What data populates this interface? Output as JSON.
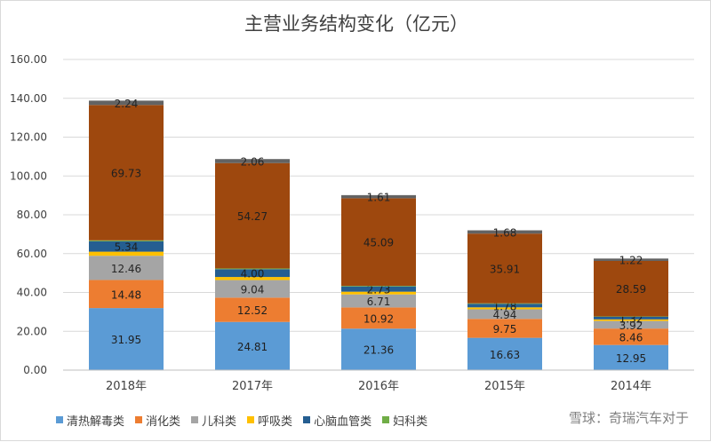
{
  "chart_data": {
    "type": "bar",
    "stacked": true,
    "title": "主营业务结构变化（亿元）",
    "categories": [
      "2018年",
      "2017年",
      "2016年",
      "2015年",
      "2014年"
    ],
    "ylim": [
      0,
      160
    ],
    "yticks": [
      "0.00",
      "20.00",
      "40.00",
      "60.00",
      "80.00",
      "100.00",
      "120.00",
      "140.00",
      "160.00"
    ],
    "grid": true,
    "legend_position": "bottom",
    "series": [
      {
        "name": "清热解毒类",
        "color": "#5b9bd5",
        "values": [
          31.95,
          24.81,
          21.36,
          16.63,
          12.95
        ],
        "labels": [
          "31.95",
          "24.81",
          "21.36",
          "16.63",
          "12.95"
        ]
      },
      {
        "name": "消化类",
        "color": "#ed7d31",
        "values": [
          14.48,
          12.52,
          10.92,
          9.75,
          8.46
        ],
        "labels": [
          "14.48",
          "12.52",
          "10.92",
          "9.75",
          "8.46"
        ]
      },
      {
        "name": "儿科类",
        "color": "#a5a5a5",
        "values": [
          12.46,
          9.04,
          6.71,
          4.94,
          3.92
        ],
        "labels": [
          "12.46",
          "9.04",
          "6.71",
          "4.94",
          "3.92"
        ]
      },
      {
        "name": "呼吸类",
        "color": "#ffc000",
        "values": [
          2.1,
          1.6,
          1.4,
          1.0,
          0.8
        ],
        "labels": [
          "",
          "",
          "",
          "",
          ""
        ]
      },
      {
        "name": "心脑血管类",
        "color": "#255e91",
        "values": [
          5.34,
          4.0,
          2.73,
          1.78,
          1.32
        ],
        "labels": [
          "5.34",
          "4.00",
          "2.73",
          "1.78",
          "1.32"
        ]
      },
      {
        "name": "妇科类",
        "color": "#70ad47",
        "values": [
          0.5,
          0.4,
          0.3,
          0.3,
          0.2
        ],
        "labels": [
          "",
          "",
          "",
          "",
          ""
        ]
      },
      {
        "name": "",
        "color": "#9e480e",
        "values": [
          69.73,
          54.27,
          45.09,
          35.91,
          28.59
        ],
        "labels": [
          "69.73",
          "54.27",
          "45.09",
          "35.91",
          "28.59"
        ]
      },
      {
        "name": "",
        "color": "#636363",
        "values": [
          2.24,
          2.06,
          1.61,
          1.68,
          1.22
        ],
        "labels": [
          "2.24",
          "2.06",
          "1.61",
          "1.68",
          "1.22"
        ]
      }
    ]
  },
  "watermark": "雪球：奇瑞汽车对于"
}
